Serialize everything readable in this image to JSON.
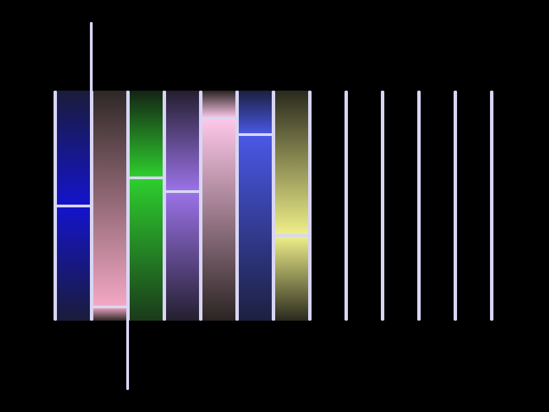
{
  "game": {
    "columns": [
      {
        "id": "c1",
        "color_top": "#1a1c3a",
        "color_mid": "#1414cc",
        "color_bottom": "#1a1c3a",
        "level": 0.5
      },
      {
        "id": "c2",
        "color_top": "#2e2826",
        "color_mid": "#f4a8c4",
        "color_bottom": "#2e2826",
        "level": 0.06
      },
      {
        "id": "c3",
        "color_top": "#142314",
        "color_mid": "#2ecf2e",
        "color_bottom": "#1b3a1b",
        "level": 0.62
      },
      {
        "id": "c4",
        "color_top": "#241f30",
        "color_mid": "#9b73e8",
        "color_bottom": "#241f30",
        "level": 0.56
      },
      {
        "id": "c5",
        "color_top": "#2b2422",
        "color_mid": "#ffc8ea",
        "color_bottom": "#2b2422",
        "level": 0.88
      },
      {
        "id": "c6",
        "color_top": "#1c2040",
        "color_mid": "#4a58e6",
        "color_bottom": "#1c2040",
        "level": 0.81
      },
      {
        "id": "c7",
        "color_top": "#2a2a1e",
        "color_mid": "#f0f08a",
        "color_bottom": "#2a2a1e",
        "level": 0.37
      }
    ],
    "empty_slots": 5,
    "accent": "#d8d6f4",
    "background": "#000000",
    "selected_column": "c2"
  }
}
